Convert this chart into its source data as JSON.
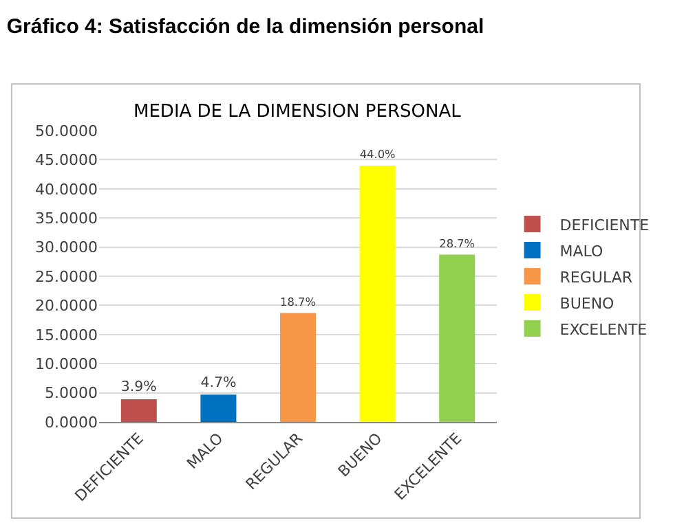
{
  "chart_data": {
    "type": "bar",
    "title": "Gráfico 4: Satisfacción de la dimensión personal",
    "subtitle": "MEDIA DE LA DIMENSION PERSONAL",
    "categories": [
      "DEFICIENTE",
      "MALO",
      "REGULAR",
      "BUENO",
      "EXCELENTE"
    ],
    "series": [
      {
        "name": "DEFICIENTE",
        "color": "#c0504d",
        "values": [
          3.9,
          null,
          null,
          null,
          null
        ],
        "value_labels": [
          "3.9%",
          null,
          null,
          null,
          null
        ]
      },
      {
        "name": "MALO",
        "color": "#0070c0",
        "values": [
          null,
          4.7,
          null,
          null,
          null
        ],
        "value_labels": [
          null,
          "4.7%",
          null,
          null,
          null
        ]
      },
      {
        "name": "REGULAR",
        "color": "#f79646",
        "values": [
          null,
          null,
          18.7,
          null,
          null
        ],
        "value_labels": [
          null,
          null,
          "18.7%",
          null,
          null
        ]
      },
      {
        "name": "BUENO",
        "color": "#ffff00",
        "values": [
          null,
          null,
          null,
          44.0,
          null
        ],
        "value_labels": [
          null,
          null,
          null,
          "44.0%",
          null
        ]
      },
      {
        "name": "EXCELENTE",
        "color": "#92d050",
        "values": [
          null,
          null,
          null,
          null,
          28.7
        ],
        "value_labels": [
          null,
          null,
          null,
          null,
          "28.7%"
        ]
      }
    ],
    "ylim": [
      0,
      50
    ],
    "yticks": [
      {
        "value": 0,
        "label": "0.0000"
      },
      {
        "value": 5,
        "label": "5.0000"
      },
      {
        "value": 10,
        "label": "10.0000"
      },
      {
        "value": 15,
        "label": "15.0000"
      },
      {
        "value": 20,
        "label": "20.0000"
      },
      {
        "value": 25,
        "label": "25.0000"
      },
      {
        "value": 30,
        "label": "30.0000"
      },
      {
        "value": 35,
        "label": "35.0000"
      },
      {
        "value": 40,
        "label": "40.0000"
      },
      {
        "value": 45,
        "label": "45.0000"
      },
      {
        "value": 50,
        "label": "50.0000"
      }
    ],
    "grid": "y",
    "legend": "right"
  }
}
